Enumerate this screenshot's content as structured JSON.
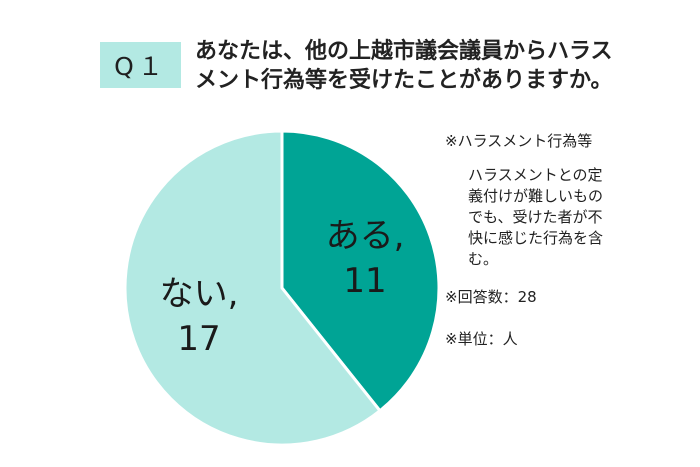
{
  "question": {
    "badge": "Q１",
    "line1": "あなたは、他の上越市議会議員からハラス",
    "line2": "メント行為等を受けたことがありますか。"
  },
  "chart_data": {
    "type": "pie",
    "slices": [
      {
        "label_line1": "ある,",
        "label_line2": "11",
        "value": 11,
        "color": "#00a495",
        "text_color": "#1a1a1a"
      },
      {
        "label_line1": "ない,",
        "label_line2": "17",
        "value": 17,
        "color": "#b3e9e3",
        "text_color": "#1a1a1a"
      }
    ]
  },
  "notes": {
    "heading": "※ハラスメント行為等",
    "body_lines": [
      "ハラスメントとの定",
      "義付けが難しいもの",
      "でも、受けた者が不",
      "快に感じた行為を含",
      "む。"
    ],
    "respondents": "※回答数：28",
    "unit": "※単位：人"
  }
}
